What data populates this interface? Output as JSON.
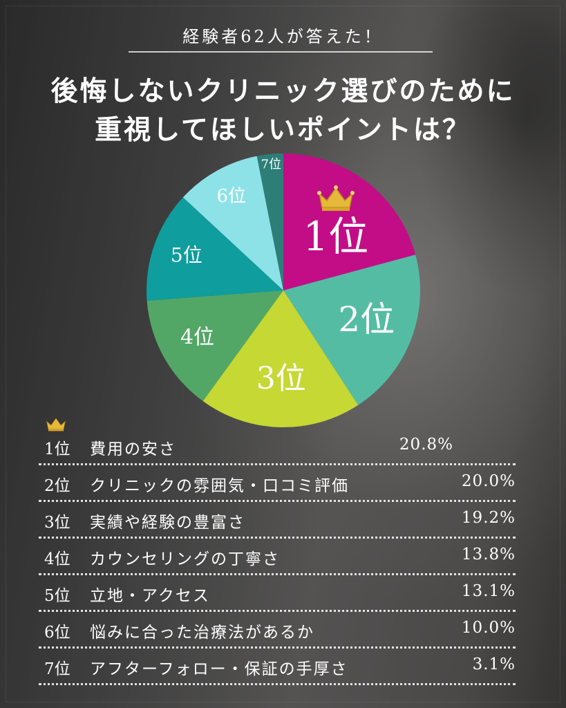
{
  "header": {
    "subtitle": "経験者62人が答えた！",
    "title_line1": "後悔しないクリニック選びのために",
    "title_line2": "重視してほしいポイントは？"
  },
  "icons": {
    "crown": "crown-icon"
  },
  "chart_data": {
    "type": "pie",
    "slices": [
      {
        "label": "1位",
        "value": 20.8,
        "color": "#c20d87"
      },
      {
        "label": "2位",
        "value": 20.0,
        "color": "#55bca4"
      },
      {
        "label": "3位",
        "value": 19.2,
        "color": "#c5d833"
      },
      {
        "label": "4位",
        "value": 13.8,
        "color": "#52a767"
      },
      {
        "label": "5位",
        "value": 13.1,
        "color": "#0f9d9e"
      },
      {
        "label": "6位",
        "value": 10.0,
        "color": "#8de2e7"
      },
      {
        "label": "7位",
        "value": 3.1,
        "color": "#2e7e78"
      }
    ]
  },
  "ranking": [
    {
      "rank": "1位",
      "label": "費用の安さ",
      "percent": "20.8%"
    },
    {
      "rank": "2位",
      "label": "クリニックの雰囲気・口コミ評価",
      "percent": "20.0%"
    },
    {
      "rank": "3位",
      "label": "実績や経験の豊富さ",
      "percent": "19.2%"
    },
    {
      "rank": "4位",
      "label": "カウンセリングの丁寧さ",
      "percent": "13.8%"
    },
    {
      "rank": "5位",
      "label": "立地・アクセス",
      "percent": "13.1%"
    },
    {
      "rank": "6位",
      "label": "悩みに合った治療法があるか",
      "percent": "10.0%"
    },
    {
      "rank": "7位",
      "label": "アフターフォロー・保証の手厚さ",
      "percent": "3.1%"
    }
  ]
}
